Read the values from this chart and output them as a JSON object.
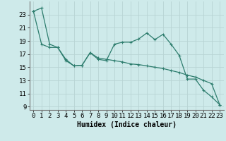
{
  "title": "",
  "xlabel": "Humidex (Indice chaleur)",
  "ylabel": "",
  "bg_color": "#ceeaea",
  "grid_color": "#b8d4d4",
  "line_color": "#2e7d6e",
  "x": [
    0,
    1,
    2,
    3,
    4,
    5,
    6,
    7,
    8,
    9,
    10,
    11,
    12,
    13,
    14,
    15,
    16,
    17,
    18,
    19,
    20,
    21,
    22,
    23
  ],
  "line1": [
    23.5,
    24.0,
    18.5,
    18.0,
    16.0,
    15.2,
    15.3,
    17.2,
    16.2,
    16.0,
    18.5,
    18.8,
    18.8,
    19.3,
    20.2,
    19.2,
    20.0,
    18.5,
    16.8,
    13.2,
    13.2,
    11.5,
    10.5,
    9.3
  ],
  "line2": [
    23.5,
    18.5,
    18.0,
    18.0,
    16.2,
    15.2,
    15.3,
    17.2,
    16.4,
    16.2,
    16.0,
    15.8,
    15.5,
    15.4,
    15.2,
    15.0,
    14.8,
    14.5,
    14.2,
    13.8,
    13.5,
    13.0,
    12.5,
    9.3
  ],
  "ylim": [
    8.5,
    25
  ],
  "yticks": [
    9,
    11,
    13,
    15,
    17,
    19,
    21,
    23
  ],
  "xlim": [
    -0.5,
    23.5
  ],
  "axis_fontsize": 7,
  "tick_fontsize": 6.5
}
